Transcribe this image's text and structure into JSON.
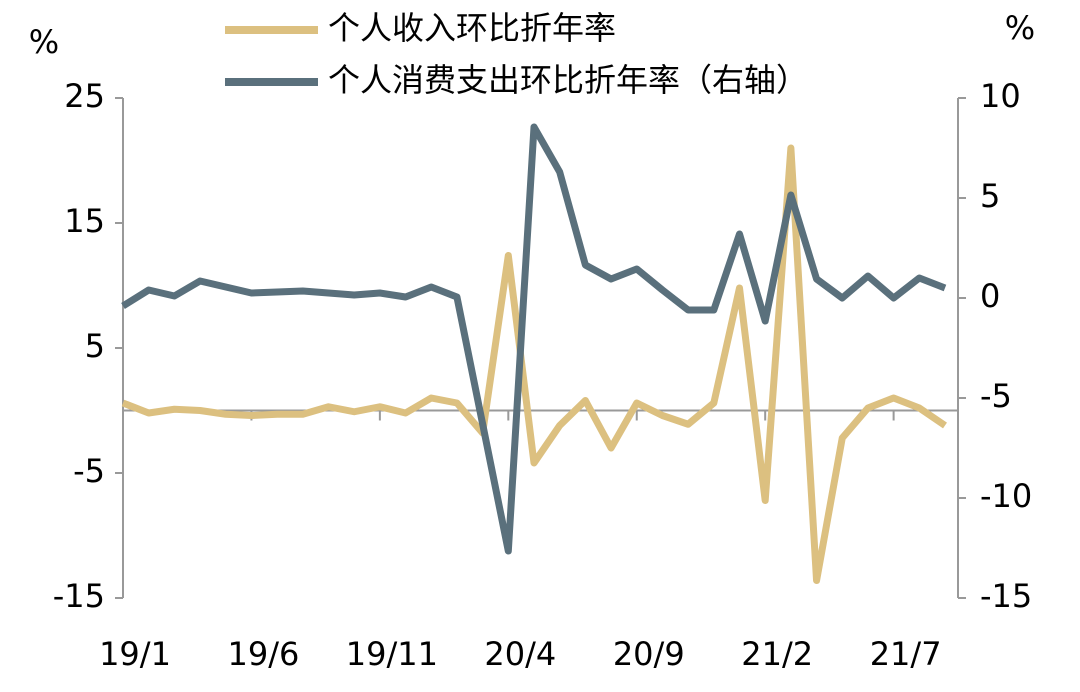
{
  "chart_data": {
    "type": "line",
    "ylabel": "%",
    "y2label": "%",
    "categories": [
      "19/1",
      null,
      null,
      null,
      null,
      "19/6",
      null,
      null,
      null,
      null,
      "19/11",
      null,
      null,
      null,
      null,
      "20/4",
      null,
      null,
      null,
      null,
      "20/9",
      null,
      null,
      null,
      null,
      "21/2",
      null,
      null,
      null,
      null,
      "21/7",
      null,
      null
    ],
    "series": [
      {
        "name": "个人收入环比折年率",
        "color": "#dcc080",
        "values": [
          0.6,
          -0.2,
          0.1,
          0.0,
          -0.3,
          -0.4,
          -0.3,
          -0.3,
          0.3,
          -0.1,
          0.3,
          -0.2,
          1.0,
          0.6,
          -1.8,
          12.4,
          -4.2,
          -1.2,
          0.8,
          -3.0,
          0.6,
          -0.4,
          -1.1,
          0.6,
          9.8,
          -7.2,
          21.0,
          -13.6,
          -2.2,
          0.2,
          1.0,
          0.2,
          -1.2
        ]
      },
      {
        "name": "个人消费支出环比折年率（右轴）",
        "color": "#5a707c",
        "axis": "y2",
        "values": [
          -0.4,
          0.4,
          0.1,
          0.85,
          0.55,
          0.25,
          0.3,
          0.35,
          0.25,
          0.15,
          0.25,
          0.05,
          0.55,
          0.05,
          -6.3,
          -12.65,
          8.55,
          6.3,
          1.65,
          0.95,
          1.45,
          0.4,
          -0.6,
          -0.6,
          3.2,
          -1.15,
          5.15,
          0.95,
          0.0,
          1.1,
          0.0,
          1.0,
          0.5
        ]
      }
    ],
    "ylim": [
      -15,
      25
    ],
    "yticks": [
      25,
      15,
      5,
      -5,
      -15
    ],
    "y2lim": [
      -15,
      10
    ],
    "y2ticks": [
      10,
      5,
      0,
      -5,
      -10,
      -15
    ],
    "legend": "top"
  }
}
